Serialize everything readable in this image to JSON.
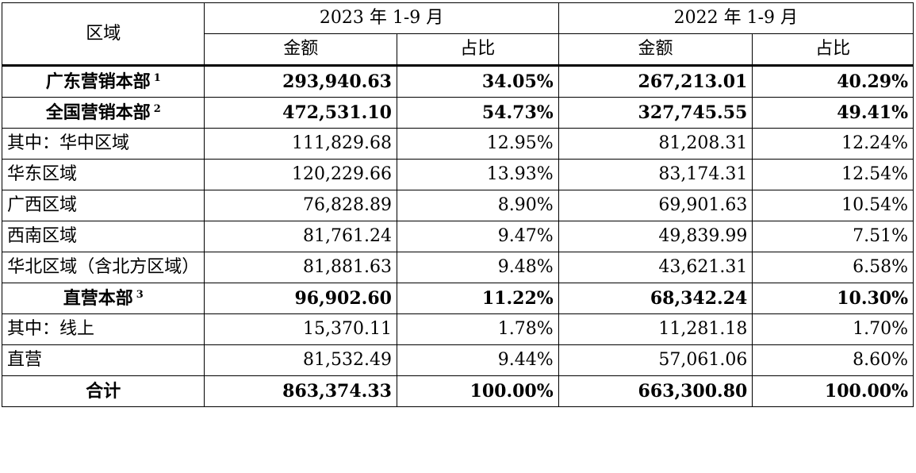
{
  "header": {
    "region": "区域",
    "year_2023": "2023 年 1-9 月",
    "year_2022": "2022 年 1-9 月",
    "amount": "金额",
    "share": "占比"
  },
  "rows": [
    {
      "region": "广东营销本部",
      "note": "1",
      "amt23": "293,940.63",
      "pct23": "34.05%",
      "amt22": "267,213.01",
      "pct22": "40.29%"
    },
    {
      "region": "全国营销本部",
      "note": "2",
      "amt23": "472,531.10",
      "pct23": "54.73%",
      "amt22": "327,745.55",
      "pct22": "49.41%"
    },
    {
      "region": "其中：华中区域",
      "amt23": "111,829.68",
      "pct23": "12.95%",
      "amt22": "81,208.31",
      "pct22": "12.24%"
    },
    {
      "region": "华东区域",
      "amt23": "120,229.66",
      "pct23": "13.93%",
      "amt22": "83,174.31",
      "pct22": "12.54%"
    },
    {
      "region": "广西区域",
      "amt23": "76,828.89",
      "pct23": "8.90%",
      "amt22": "69,901.63",
      "pct22": "10.54%"
    },
    {
      "region": "西南区域",
      "amt23": "81,761.24",
      "pct23": "9.47%",
      "amt22": "49,839.99",
      "pct22": "7.51%"
    },
    {
      "region": "华北区域（含北方区域）",
      "amt23": "81,881.63",
      "pct23": "9.48%",
      "amt22": "43,621.31",
      "pct22": "6.58%"
    },
    {
      "region": "直营本部",
      "note": "3",
      "amt23": "96,902.60",
      "pct23": "11.22%",
      "amt22": "68,342.24",
      "pct22": "10.30%"
    },
    {
      "region": "其中：线上",
      "amt23": "15,370.11",
      "pct23": "1.78%",
      "amt22": "11,281.18",
      "pct22": "1.70%"
    },
    {
      "region": "直营",
      "amt23": "81,532.49",
      "pct23": "9.44%",
      "amt22": "57,061.06",
      "pct22": "8.60%"
    },
    {
      "region": "合计",
      "amt23": "863,374.33",
      "pct23": "100.00%",
      "amt22": "663,300.80",
      "pct22": "100.00%"
    }
  ]
}
